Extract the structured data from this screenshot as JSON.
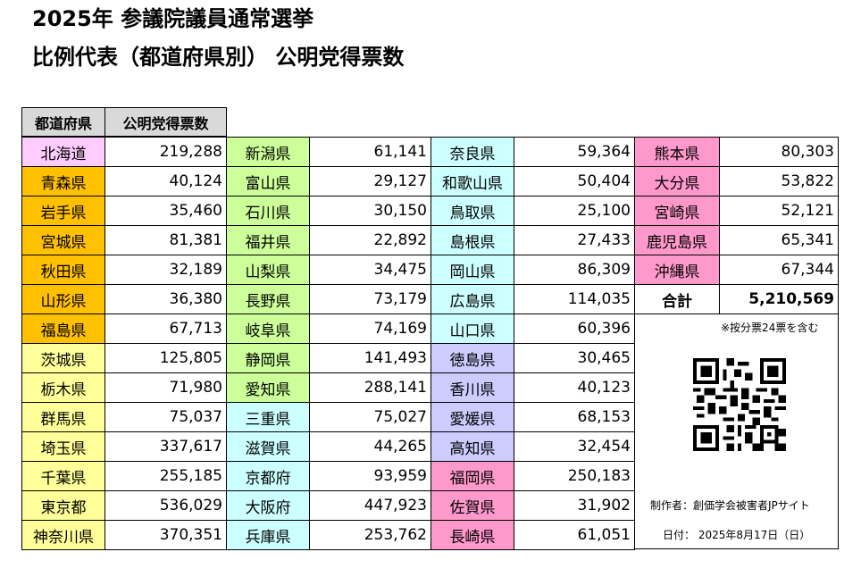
{
  "title": {
    "line1": "2025年 参議院議員通常選挙",
    "line2": "比例代表（都道府県別） 公明党得票数"
  },
  "headers": {
    "prefecture": "都道府県",
    "votes": "公明党得票数"
  },
  "colors": {
    "hokkaido": "#ffccff",
    "tohoku": "#ffc000",
    "kanto": "#ffff99",
    "chubu": "#ccff99",
    "kinki": "#ccffff",
    "chugoku": "#ccffff",
    "shikoku": "#ccccff",
    "kyushu": "#ff99cc",
    "header": "#d9d9d9"
  },
  "columns": [
    [
      {
        "name": "北海道",
        "votes": "219,288",
        "region": "hokkaido"
      },
      {
        "name": "青森県",
        "votes": "40,124",
        "region": "tohoku"
      },
      {
        "name": "岩手県",
        "votes": "35,460",
        "region": "tohoku"
      },
      {
        "name": "宮城県",
        "votes": "81,381",
        "region": "tohoku"
      },
      {
        "name": "秋田県",
        "votes": "32,189",
        "region": "tohoku"
      },
      {
        "name": "山形県",
        "votes": "36,380",
        "region": "tohoku"
      },
      {
        "name": "福島県",
        "votes": "67,713",
        "region": "tohoku"
      },
      {
        "name": "茨城県",
        "votes": "125,805",
        "region": "kanto"
      },
      {
        "name": "栃木県",
        "votes": "71,980",
        "region": "kanto"
      },
      {
        "name": "群馬県",
        "votes": "75,037",
        "region": "kanto"
      },
      {
        "name": "埼玉県",
        "votes": "337,617",
        "region": "kanto"
      },
      {
        "name": "千葉県",
        "votes": "255,185",
        "region": "kanto"
      },
      {
        "name": "東京都",
        "votes": "536,029",
        "region": "kanto"
      },
      {
        "name": "神奈川県",
        "votes": "370,351",
        "region": "kanto"
      }
    ],
    [
      {
        "name": "新潟県",
        "votes": "61,141",
        "region": "chubu"
      },
      {
        "name": "富山県",
        "votes": "29,127",
        "region": "chubu"
      },
      {
        "name": "石川県",
        "votes": "30,150",
        "region": "chubu"
      },
      {
        "name": "福井県",
        "votes": "22,892",
        "region": "chubu"
      },
      {
        "name": "山梨県",
        "votes": "34,475",
        "region": "chubu"
      },
      {
        "name": "長野県",
        "votes": "73,179",
        "region": "chubu"
      },
      {
        "name": "岐阜県",
        "votes": "74,169",
        "region": "chubu"
      },
      {
        "name": "静岡県",
        "votes": "141,493",
        "region": "chubu"
      },
      {
        "name": "愛知県",
        "votes": "288,141",
        "region": "chubu"
      },
      {
        "name": "三重県",
        "votes": "75,027",
        "region": "kinki"
      },
      {
        "name": "滋賀県",
        "votes": "44,265",
        "region": "kinki"
      },
      {
        "name": "京都府",
        "votes": "93,959",
        "region": "kinki"
      },
      {
        "name": "大阪府",
        "votes": "447,923",
        "region": "kinki"
      },
      {
        "name": "兵庫県",
        "votes": "253,762",
        "region": "kinki"
      }
    ],
    [
      {
        "name": "奈良県",
        "votes": "59,364",
        "region": "kinki"
      },
      {
        "name": "和歌山県",
        "votes": "50,404",
        "region": "kinki"
      },
      {
        "name": "鳥取県",
        "votes": "25,100",
        "region": "chugoku"
      },
      {
        "name": "島根県",
        "votes": "27,433",
        "region": "chugoku"
      },
      {
        "name": "岡山県",
        "votes": "86,309",
        "region": "chugoku"
      },
      {
        "name": "広島県",
        "votes": "114,035",
        "region": "chugoku"
      },
      {
        "name": "山口県",
        "votes": "60,396",
        "region": "chugoku"
      },
      {
        "name": "徳島県",
        "votes": "30,465",
        "region": "shikoku"
      },
      {
        "name": "香川県",
        "votes": "40,123",
        "region": "shikoku"
      },
      {
        "name": "愛媛県",
        "votes": "68,153",
        "region": "shikoku"
      },
      {
        "name": "高知県",
        "votes": "32,454",
        "region": "shikoku"
      },
      {
        "name": "福岡県",
        "votes": "250,183",
        "region": "kyushu"
      },
      {
        "name": "佐賀県",
        "votes": "31,902",
        "region": "kyushu"
      },
      {
        "name": "長崎県",
        "votes": "61,051",
        "region": "kyushu"
      }
    ],
    [
      {
        "name": "熊本県",
        "votes": "80,303",
        "region": "kyushu"
      },
      {
        "name": "大分県",
        "votes": "53,822",
        "region": "kyushu"
      },
      {
        "name": "宮崎県",
        "votes": "52,121",
        "region": "kyushu"
      },
      {
        "name": "鹿児島県",
        "votes": "65,341",
        "region": "kyushu"
      },
      {
        "name": "沖縄県",
        "votes": "67,344",
        "region": "kyushu"
      }
    ]
  ],
  "total": {
    "label": "合計",
    "votes": "5,210,569"
  },
  "notes": {
    "proportional": "※按分票24票を含む",
    "author": "制作者：創価学会被害者JPサイト",
    "date": "日付： 2025年8月17日（日）"
  },
  "qr_icon": "qr-code-icon"
}
